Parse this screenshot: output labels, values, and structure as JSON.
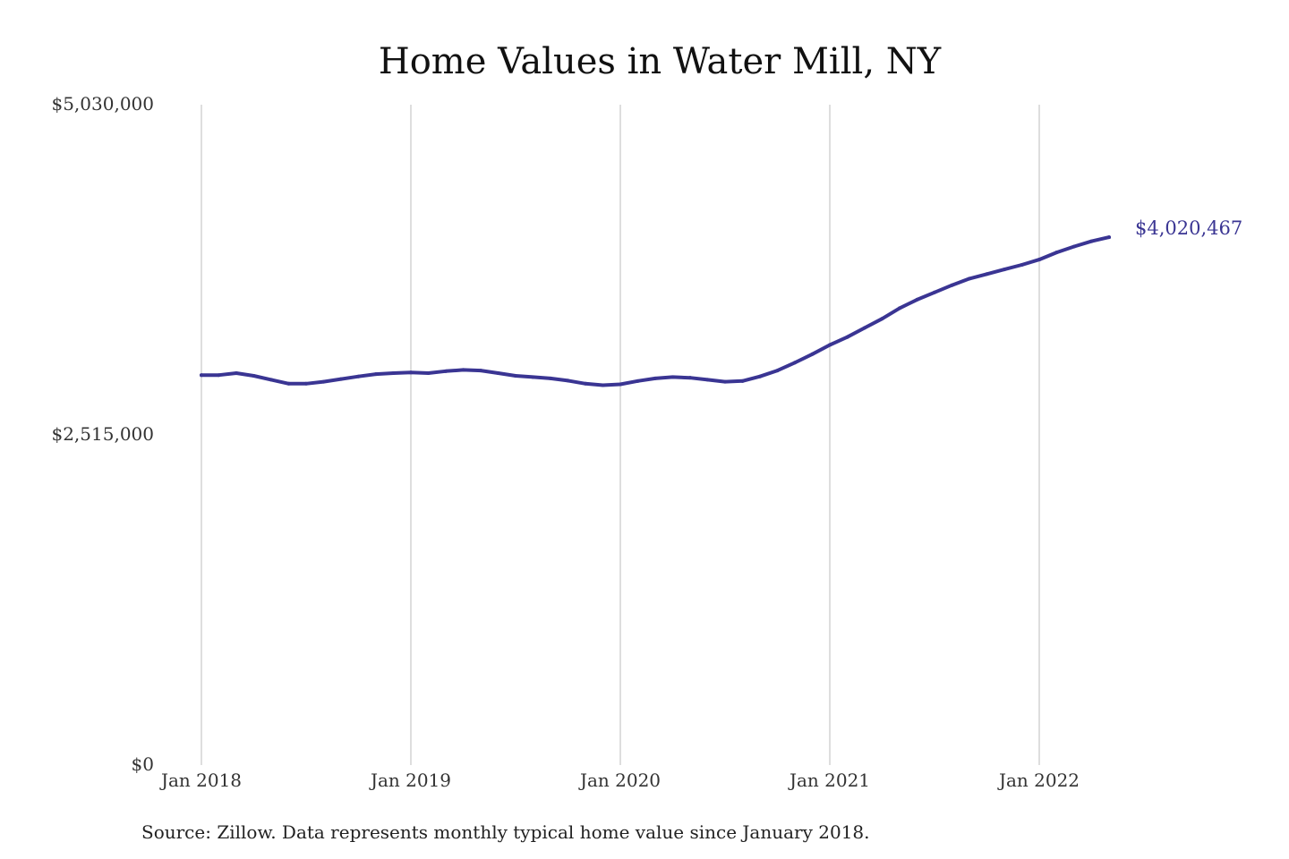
{
  "chart_data": {
    "type": "line",
    "title": "Home Values in Water Mill, NY",
    "xlabel": "",
    "ylabel": "",
    "ylim": [
      0,
      5030000
    ],
    "y_ticks": [
      {
        "value": 0,
        "label": "$0"
      },
      {
        "value": 2515000,
        "label": "$2,515,000"
      },
      {
        "value": 5030000,
        "label": "$5,030,000"
      }
    ],
    "x_ticks": [
      {
        "value": "2018-01",
        "label": "Jan 2018"
      },
      {
        "value": "2019-01",
        "label": "Jan 2019"
      },
      {
        "value": "2020-01",
        "label": "Jan 2020"
      },
      {
        "value": "2021-01",
        "label": "Jan 2021"
      },
      {
        "value": "2022-01",
        "label": "Jan 2022"
      }
    ],
    "grid": "vertical at x ticks",
    "series": [
      {
        "color": "#3a3593",
        "x": [
          "2018-01",
          "2018-02",
          "2018-03",
          "2018-04",
          "2018-05",
          "2018-06",
          "2018-07",
          "2018-08",
          "2018-09",
          "2018-10",
          "2018-11",
          "2018-12",
          "2019-01",
          "2019-02",
          "2019-03",
          "2019-04",
          "2019-05",
          "2019-06",
          "2019-07",
          "2019-08",
          "2019-09",
          "2019-10",
          "2019-11",
          "2019-12",
          "2020-01",
          "2020-02",
          "2020-03",
          "2020-04",
          "2020-05",
          "2020-06",
          "2020-07",
          "2020-08",
          "2020-09",
          "2020-10",
          "2020-11",
          "2020-12",
          "2021-01",
          "2021-02",
          "2021-03",
          "2021-04",
          "2021-05",
          "2021-06",
          "2021-07",
          "2021-08",
          "2021-09",
          "2021-10",
          "2021-11",
          "2021-12",
          "2022-01",
          "2022-02",
          "2022-03",
          "2022-04",
          "2022-05"
        ],
        "values": [
          2970000,
          2970000,
          2985000,
          2965000,
          2935000,
          2905000,
          2905000,
          2920000,
          2940000,
          2960000,
          2978000,
          2985000,
          2990000,
          2985000,
          3000000,
          3010000,
          3005000,
          2985000,
          2965000,
          2955000,
          2945000,
          2928000,
          2905000,
          2893000,
          2900000,
          2925000,
          2945000,
          2955000,
          2950000,
          2935000,
          2920000,
          2925000,
          2960000,
          3005000,
          3065000,
          3130000,
          3200000,
          3260000,
          3330000,
          3400000,
          3480000,
          3545000,
          3600000,
          3655000,
          3705000,
          3740000,
          3775000,
          3810000,
          3850000,
          3905000,
          3950000,
          3990000,
          4020467
        ]
      }
    ],
    "end_label": "$4,020,467"
  },
  "footer": {
    "source": "Source: Zillow. Data represents monthly typical home value since January 2018."
  }
}
